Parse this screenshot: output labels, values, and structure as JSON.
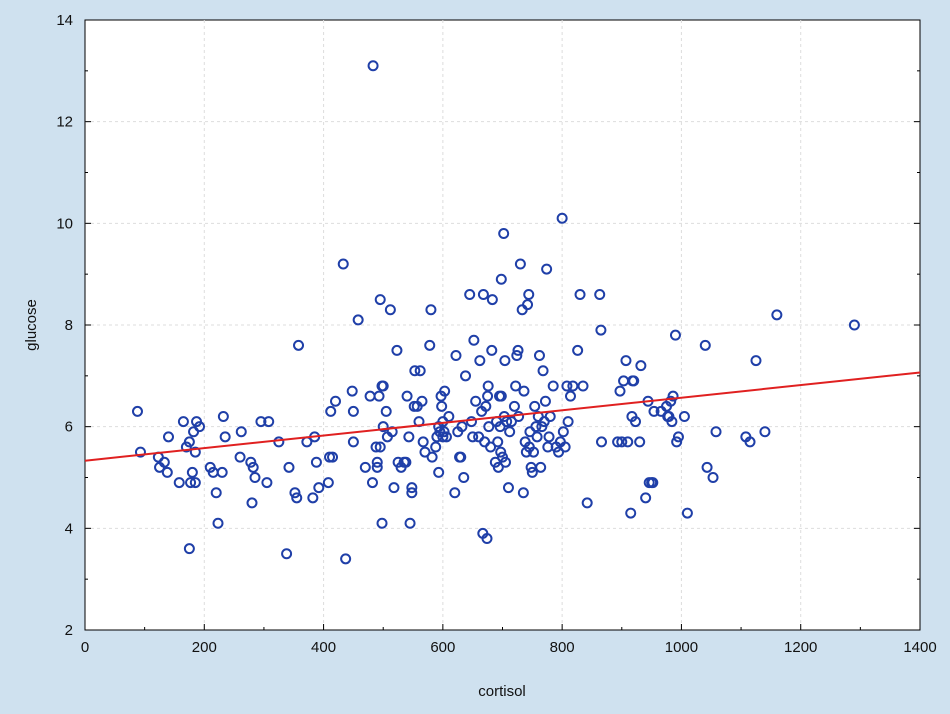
{
  "chart_data": {
    "type": "scatter",
    "title": "",
    "xlabel": "cortisol",
    "ylabel": "glucose",
    "xlim": [
      0,
      1400
    ],
    "ylim": [
      2,
      14
    ],
    "xticks": [
      0,
      200,
      400,
      600,
      800,
      1000,
      1200,
      1400
    ],
    "yticks": [
      2,
      4,
      6,
      8,
      10,
      12,
      14
    ],
    "grid": true,
    "marker_color": "#1f3fa8",
    "fit_color": "#e02020",
    "fit_line": {
      "intercept": 5.33,
      "slope": 0.00124
    },
    "points": [
      [
        88,
        6.3
      ],
      [
        93,
        5.5
      ],
      [
        123,
        5.4
      ],
      [
        125,
        5.2
      ],
      [
        133,
        5.3
      ],
      [
        138,
        5.1
      ],
      [
        140,
        5.8
      ],
      [
        158,
        4.9
      ],
      [
        165,
        6.1
      ],
      [
        170,
        5.6
      ],
      [
        175,
        3.6
      ],
      [
        175,
        5.7
      ],
      [
        177,
        4.9
      ],
      [
        180,
        5.1
      ],
      [
        182,
        5.9
      ],
      [
        185,
        5.5
      ],
      [
        185,
        4.9
      ],
      [
        187,
        6.1
      ],
      [
        192,
        6.0
      ],
      [
        210,
        5.2
      ],
      [
        215,
        5.1
      ],
      [
        220,
        4.7
      ],
      [
        223,
        4.1
      ],
      [
        230,
        5.1
      ],
      [
        232,
        6.2
      ],
      [
        235,
        5.8
      ],
      [
        260,
        5.4
      ],
      [
        262,
        5.9
      ],
      [
        278,
        5.3
      ],
      [
        280,
        4.5
      ],
      [
        282,
        5.2
      ],
      [
        285,
        5.0
      ],
      [
        295,
        6.1
      ],
      [
        305,
        4.9
      ],
      [
        308,
        6.1
      ],
      [
        325,
        5.7
      ],
      [
        338,
        3.5
      ],
      [
        342,
        5.2
      ],
      [
        352,
        4.7
      ],
      [
        355,
        4.6
      ],
      [
        358,
        7.6
      ],
      [
        372,
        5.7
      ],
      [
        382,
        4.6
      ],
      [
        385,
        5.8
      ],
      [
        388,
        5.3
      ],
      [
        392,
        4.8
      ],
      [
        408,
        4.9
      ],
      [
        410,
        5.4
      ],
      [
        412,
        6.3
      ],
      [
        415,
        5.4
      ],
      [
        420,
        6.5
      ],
      [
        433,
        9.2
      ],
      [
        437,
        3.4
      ],
      [
        448,
        6.7
      ],
      [
        450,
        5.7
      ],
      [
        450,
        6.3
      ],
      [
        458,
        8.1
      ],
      [
        470,
        5.2
      ],
      [
        478,
        6.6
      ],
      [
        482,
        4.9
      ],
      [
        483,
        13.1
      ],
      [
        488,
        5.6
      ],
      [
        490,
        5.3
      ],
      [
        490,
        5.2
      ],
      [
        493,
        6.6
      ],
      [
        495,
        8.5
      ],
      [
        495,
        5.6
      ],
      [
        498,
        6.8
      ],
      [
        498,
        4.1
      ],
      [
        500,
        6.8
      ],
      [
        500,
        6.0
      ],
      [
        505,
        6.3
      ],
      [
        507,
        5.8
      ],
      [
        512,
        8.3
      ],
      [
        515,
        5.9
      ],
      [
        518,
        4.8
      ],
      [
        523,
        7.5
      ],
      [
        525,
        5.3
      ],
      [
        530,
        5.2
      ],
      [
        535,
        5.3
      ],
      [
        538,
        5.3
      ],
      [
        540,
        6.6
      ],
      [
        543,
        5.8
      ],
      [
        545,
        4.1
      ],
      [
        548,
        4.7
      ],
      [
        548,
        4.8
      ],
      [
        552,
        6.4
      ],
      [
        553,
        7.1
      ],
      [
        557,
        6.4
      ],
      [
        560,
        6.1
      ],
      [
        562,
        7.1
      ],
      [
        565,
        6.5
      ],
      [
        567,
        5.7
      ],
      [
        570,
        5.5
      ],
      [
        578,
        7.6
      ],
      [
        580,
        8.3
      ],
      [
        582,
        5.4
      ],
      [
        588,
        5.6
      ],
      [
        590,
        5.8
      ],
      [
        593,
        6.0
      ],
      [
        593,
        5.1
      ],
      [
        595,
        5.9
      ],
      [
        597,
        6.6
      ],
      [
        598,
        6.4
      ],
      [
        600,
        6.1
      ],
      [
        600,
        5.8
      ],
      [
        602,
        5.9
      ],
      [
        603,
        6.7
      ],
      [
        606,
        5.8
      ],
      [
        610,
        6.2
      ],
      [
        620,
        4.7
      ],
      [
        622,
        7.4
      ],
      [
        625,
        5.9
      ],
      [
        628,
        5.4
      ],
      [
        630,
        5.4
      ],
      [
        632,
        6.0
      ],
      [
        635,
        5.0
      ],
      [
        638,
        7.0
      ],
      [
        645,
        8.6
      ],
      [
        648,
        6.1
      ],
      [
        650,
        5.8
      ],
      [
        652,
        7.7
      ],
      [
        655,
        6.5
      ],
      [
        660,
        5.8
      ],
      [
        662,
        7.3
      ],
      [
        665,
        6.3
      ],
      [
        667,
        3.9
      ],
      [
        668,
        8.6
      ],
      [
        670,
        5.7
      ],
      [
        672,
        6.4
      ],
      [
        674,
        3.8
      ],
      [
        675,
        6.6
      ],
      [
        676,
        6.8
      ],
      [
        677,
        6.0
      ],
      [
        680,
        5.6
      ],
      [
        682,
        7.5
      ],
      [
        683,
        8.5
      ],
      [
        688,
        5.3
      ],
      [
        690,
        6.1
      ],
      [
        692,
        5.7
      ],
      [
        693,
        5.2
      ],
      [
        695,
        6.6
      ],
      [
        696,
        6.0
      ],
      [
        697,
        5.5
      ],
      [
        698,
        8.9
      ],
      [
        698,
        6.6
      ],
      [
        700,
        5.4
      ],
      [
        702,
        9.8
      ],
      [
        703,
        6.2
      ],
      [
        704,
        7.3
      ],
      [
        705,
        5.3
      ],
      [
        707,
        6.1
      ],
      [
        710,
        4.8
      ],
      [
        712,
        5.9
      ],
      [
        715,
        6.1
      ],
      [
        720,
        6.4
      ],
      [
        722,
        6.8
      ],
      [
        724,
        7.4
      ],
      [
        726,
        7.5
      ],
      [
        727,
        6.2
      ],
      [
        730,
        9.2
      ],
      [
        733,
        8.3
      ],
      [
        735,
        4.7
      ],
      [
        736,
        6.7
      ],
      [
        738,
        5.7
      ],
      [
        740,
        5.5
      ],
      [
        742,
        8.4
      ],
      [
        744,
        8.6
      ],
      [
        745,
        5.6
      ],
      [
        746,
        5.9
      ],
      [
        748,
        5.2
      ],
      [
        750,
        5.1
      ],
      [
        752,
        5.5
      ],
      [
        754,
        6.4
      ],
      [
        756,
        6.0
      ],
      [
        758,
        5.8
      ],
      [
        760,
        6.2
      ],
      [
        762,
        7.4
      ],
      [
        764,
        5.2
      ],
      [
        766,
        6.0
      ],
      [
        768,
        7.1
      ],
      [
        770,
        6.1
      ],
      [
        772,
        6.5
      ],
      [
        774,
        9.1
      ],
      [
        776,
        5.6
      ],
      [
        778,
        5.8
      ],
      [
        780,
        6.2
      ],
      [
        785,
        6.8
      ],
      [
        790,
        5.6
      ],
      [
        794,
        5.5
      ],
      [
        797,
        5.7
      ],
      [
        800,
        10.1
      ],
      [
        802,
        5.9
      ],
      [
        805,
        5.6
      ],
      [
        808,
        6.8
      ],
      [
        810,
        6.1
      ],
      [
        814,
        6.6
      ],
      [
        818,
        6.8
      ],
      [
        826,
        7.5
      ],
      [
        830,
        8.6
      ],
      [
        835,
        6.8
      ],
      [
        842,
        4.5
      ],
      [
        863,
        8.6
      ],
      [
        865,
        7.9
      ],
      [
        866,
        5.7
      ],
      [
        893,
        5.7
      ],
      [
        897,
        6.7
      ],
      [
        900,
        5.7
      ],
      [
        903,
        6.9
      ],
      [
        907,
        7.3
      ],
      [
        910,
        5.7
      ],
      [
        915,
        4.3
      ],
      [
        917,
        6.2
      ],
      [
        918,
        6.9
      ],
      [
        920,
        6.9
      ],
      [
        923,
        6.1
      ],
      [
        930,
        5.7
      ],
      [
        932,
        7.2
      ],
      [
        940,
        4.6
      ],
      [
        944,
        6.5
      ],
      [
        946,
        4.9
      ],
      [
        950,
        4.9
      ],
      [
        952,
        4.9
      ],
      [
        954,
        6.3
      ],
      [
        966,
        6.3
      ],
      [
        975,
        6.4
      ],
      [
        977,
        6.2
      ],
      [
        979,
        6.2
      ],
      [
        982,
        6.5
      ],
      [
        984,
        6.1
      ],
      [
        986,
        6.6
      ],
      [
        990,
        7.8
      ],
      [
        992,
        5.7
      ],
      [
        995,
        5.8
      ],
      [
        1005,
        6.2
      ],
      [
        1010,
        4.3
      ],
      [
        1040,
        7.6
      ],
      [
        1043,
        5.2
      ],
      [
        1053,
        5.0
      ],
      [
        1058,
        5.9
      ],
      [
        1108,
        5.8
      ],
      [
        1115,
        5.7
      ],
      [
        1125,
        7.3
      ],
      [
        1140,
        5.9
      ],
      [
        1160,
        8.2
      ],
      [
        1290,
        8.0
      ]
    ]
  }
}
